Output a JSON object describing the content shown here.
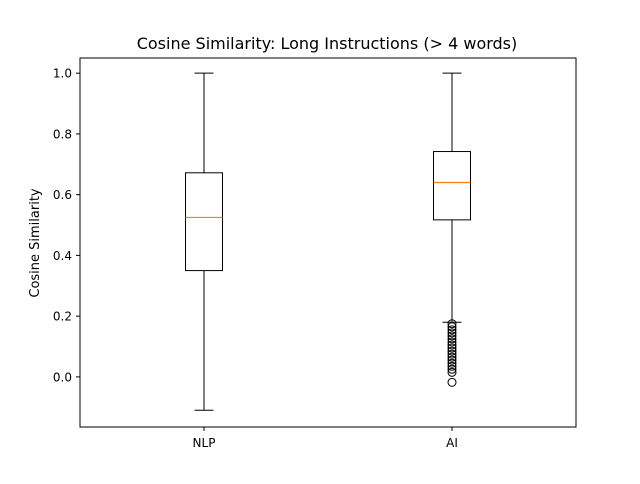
{
  "chart_data": {
    "type": "box",
    "title": "Cosine Similarity: Long Instructions (> 4 words)",
    "xlabel": "",
    "ylabel": "Cosine Similarity",
    "ylim": [
      -0.165,
      1.05
    ],
    "yticks": [
      0.0,
      0.2,
      0.4,
      0.6,
      0.8,
      1.0
    ],
    "ytick_labels": [
      "0.0",
      "0.2",
      "0.4",
      "0.6",
      "0.8",
      "1.0"
    ],
    "categories": [
      "NLP",
      "AI"
    ],
    "grid": false,
    "legend": "none",
    "colors": {
      "box": "#000000",
      "median": "#ff7f0e",
      "outlier": "#000000"
    },
    "boxes": [
      {
        "name": "NLP",
        "whisker_low": -0.11,
        "q1": 0.35,
        "median": 0.525,
        "q3": 0.672,
        "whisker_high": 1.0,
        "outliers": []
      },
      {
        "name": "AI",
        "whisker_low": 0.18,
        "q1": 0.517,
        "median": 0.64,
        "q3": 0.742,
        "whisker_high": 1.0,
        "outliers": [
          0.175,
          0.165,
          0.155,
          0.145,
          0.135,
          0.125,
          0.115,
          0.105,
          0.095,
          0.085,
          0.075,
          0.065,
          0.055,
          0.045,
          0.035,
          0.025,
          0.015,
          -0.018
        ]
      }
    ]
  }
}
